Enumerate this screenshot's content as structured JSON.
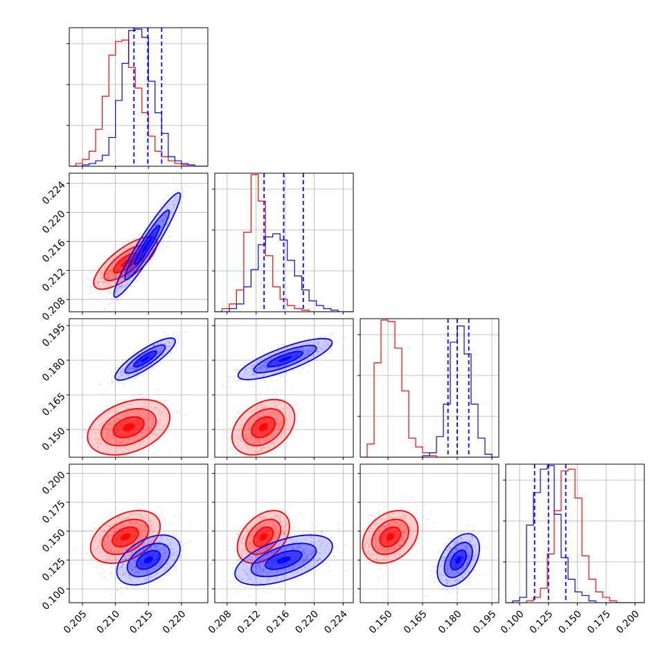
{
  "chart_data": {
    "type": "corner",
    "title": "",
    "legend": "none",
    "grid": true,
    "colors": {
      "series_a": "#ff0000",
      "series_b": "#0000ff"
    },
    "parameters": [
      {
        "xlim": [
          0.203,
          0.224
        ],
        "ticks": [
          0.205,
          0.21,
          0.215,
          0.22
        ],
        "tick_labels": [
          "0.205",
          "0.210",
          "0.215",
          "0.220"
        ],
        "quantiles_b": [
          0.2128,
          0.2149,
          0.217
        ]
      },
      {
        "xlim": [
          0.2063,
          0.2254
        ],
        "ticks": [
          0.208,
          0.212,
          0.216,
          0.22,
          0.224
        ],
        "tick_labels": [
          "0.208",
          "0.212",
          "0.216",
          "0.220",
          "0.224"
        ],
        "quantiles_b": [
          0.2131,
          0.2158,
          0.2185
        ]
      },
      {
        "xlim": [
          0.138,
          0.198
        ],
        "ticks": [
          0.15,
          0.165,
          0.18,
          0.195
        ],
        "tick_labels": [
          "0.150",
          "0.165",
          "0.180",
          "0.195"
        ],
        "quantiles_b": [
          0.176,
          0.18,
          0.185
        ]
      },
      {
        "xlim": [
          0.088,
          0.208
        ],
        "ticks": [
          0.1,
          0.125,
          0.15,
          0.175,
          0.2
        ],
        "tick_labels": [
          "0.100",
          "0.125",
          "0.150",
          "0.175",
          "0.200"
        ],
        "quantiles_b": [
          0.113,
          0.125,
          0.14
        ]
      }
    ],
    "histograms": [
      {
        "param": 0,
        "bin_edges": [
          0.203,
          0.204,
          0.205,
          0.206,
          0.207,
          0.208,
          0.209,
          0.21,
          0.211,
          0.212,
          0.213,
          0.214,
          0.215,
          0.216,
          0.217,
          0.218,
          0.219,
          0.22,
          0.221,
          0.222,
          0.223,
          0.224
        ],
        "series_a": [
          0.0,
          0.02,
          0.05,
          0.11,
          0.27,
          0.51,
          0.81,
          0.91,
          0.92,
          0.72,
          0.57,
          0.39,
          0.22,
          0.11,
          0.07,
          0.04,
          0.02,
          0.01,
          0.01,
          0.0,
          0.0
        ],
        "series_b": [
          0.0,
          0.0,
          0.01,
          0.02,
          0.04,
          0.08,
          0.21,
          0.48,
          0.75,
          0.99,
          1.0,
          0.94,
          0.62,
          0.39,
          0.24,
          0.07,
          0.04,
          0.02,
          0.01,
          0.0,
          0.0
        ]
      },
      {
        "param": 1,
        "bin_edges": [
          0.2063,
          0.2073,
          0.2083,
          0.2093,
          0.2103,
          0.2113,
          0.2123,
          0.2133,
          0.2143,
          0.2153,
          0.2163,
          0.2173,
          0.2183,
          0.2193,
          0.2203,
          0.2213,
          0.2223,
          0.2233,
          0.2243,
          0.2253
        ],
        "series_a": [
          0.0,
          0.02,
          0.05,
          0.14,
          0.51,
          0.88,
          0.71,
          0.36,
          0.16,
          0.08,
          0.04,
          0.02,
          0.01,
          0.0,
          0.0,
          0.0,
          0.0,
          0.0,
          0.0
        ],
        "series_b": [
          0.0,
          0.0,
          0.02,
          0.05,
          0.16,
          0.27,
          0.43,
          0.48,
          0.5,
          0.46,
          0.33,
          0.23,
          0.14,
          0.07,
          0.04,
          0.02,
          0.01,
          0.0,
          0.0
        ]
      },
      {
        "param": 2,
        "bin_edges": [
          0.138,
          0.141,
          0.144,
          0.147,
          0.15,
          0.153,
          0.156,
          0.159,
          0.162,
          0.165,
          0.168,
          0.171,
          0.174,
          0.177,
          0.18,
          0.183,
          0.186,
          0.189,
          0.192,
          0.195,
          0.198
        ],
        "series_a": [
          0.0,
          0.09,
          0.64,
          0.93,
          0.92,
          0.74,
          0.45,
          0.13,
          0.07,
          0.03,
          0.01,
          0.0,
          0.0,
          0.0,
          0.0,
          0.0,
          0.0,
          0.0,
          0.0,
          0.0
        ],
        "series_b": [
          0.0,
          0.0,
          0.0,
          0.0,
          0.0,
          0.0,
          0.0,
          0.0,
          0.0,
          0.01,
          0.03,
          0.14,
          0.36,
          0.78,
          0.89,
          0.7,
          0.36,
          0.13,
          0.02,
          0.0
        ]
      },
      {
        "param": 3,
        "bin_edges": [
          0.088,
          0.094,
          0.1,
          0.106,
          0.112,
          0.118,
          0.124,
          0.13,
          0.136,
          0.142,
          0.148,
          0.154,
          0.16,
          0.166,
          0.172,
          0.178,
          0.184,
          0.19,
          0.196,
          0.202,
          0.208
        ],
        "series_a": [
          0.0,
          0.0,
          0.0,
          0.01,
          0.03,
          0.08,
          0.27,
          0.51,
          0.73,
          0.74,
          0.58,
          0.26,
          0.13,
          0.06,
          0.03,
          0.01,
          0.0,
          0.0,
          0.0,
          0.0
        ],
        "series_b": [
          0.0,
          0.01,
          0.03,
          0.43,
          0.61,
          0.74,
          0.76,
          0.49,
          0.25,
          0.13,
          0.06,
          0.04,
          0.01,
          0.0,
          0.0,
          0.0,
          0.0,
          0.0,
          0.0,
          0.0
        ]
      }
    ],
    "contours": [
      {
        "xparam": 0,
        "yparam": 1,
        "series_a": {
          "center": [
            0.2115,
            0.213
          ],
          "sigma": [
            0.002,
            0.0015
          ],
          "rho": 0.75
        },
        "series_b": {
          "center": [
            0.2148,
            0.2155
          ],
          "sigma": [
            0.0021,
            0.003
          ],
          "rho": 0.95
        }
      },
      {
        "xparam": 0,
        "yparam": 2,
        "series_a": {
          "center": [
            0.212,
            0.151
          ],
          "sigma": [
            0.0026,
            0.005
          ],
          "rho": 0.35
        },
        "series_b": {
          "center": [
            0.2145,
            0.1805
          ],
          "sigma": [
            0.0019,
            0.0038
          ],
          "rho": 0.85
        }
      },
      {
        "xparam": 1,
        "yparam": 2,
        "series_a": {
          "center": [
            0.213,
            0.151
          ],
          "sigma": [
            0.0018,
            0.005
          ],
          "rho": 0.35
        },
        "series_b": {
          "center": [
            0.216,
            0.1805
          ],
          "sigma": [
            0.0027,
            0.0037
          ],
          "rho": 0.8
        }
      },
      {
        "xparam": 0,
        "yparam": 3,
        "series_a": {
          "center": [
            0.2115,
            0.145
          ],
          "sigma": [
            0.0022,
            0.0095
          ],
          "rho": 0.4
        },
        "series_b": {
          "center": [
            0.215,
            0.125
          ],
          "sigma": [
            0.002,
            0.009
          ],
          "rho": 0.45
        }
      },
      {
        "xparam": 1,
        "yparam": 3,
        "series_a": {
          "center": [
            0.213,
            0.145
          ],
          "sigma": [
            0.0015,
            0.0095
          ],
          "rho": 0.4
        },
        "series_b": {
          "center": [
            0.2158,
            0.125
          ],
          "sigma": [
            0.0028,
            0.009
          ],
          "rho": 0.55
        }
      },
      {
        "xparam": 2,
        "yparam": 3,
        "series_a": {
          "center": [
            0.151,
            0.145
          ],
          "sigma": [
            0.005,
            0.0095
          ],
          "rho": 0.3
        },
        "series_b": {
          "center": [
            0.1805,
            0.125
          ],
          "sigma": [
            0.0038,
            0.0095
          ],
          "rho": 0.45
        }
      }
    ]
  }
}
